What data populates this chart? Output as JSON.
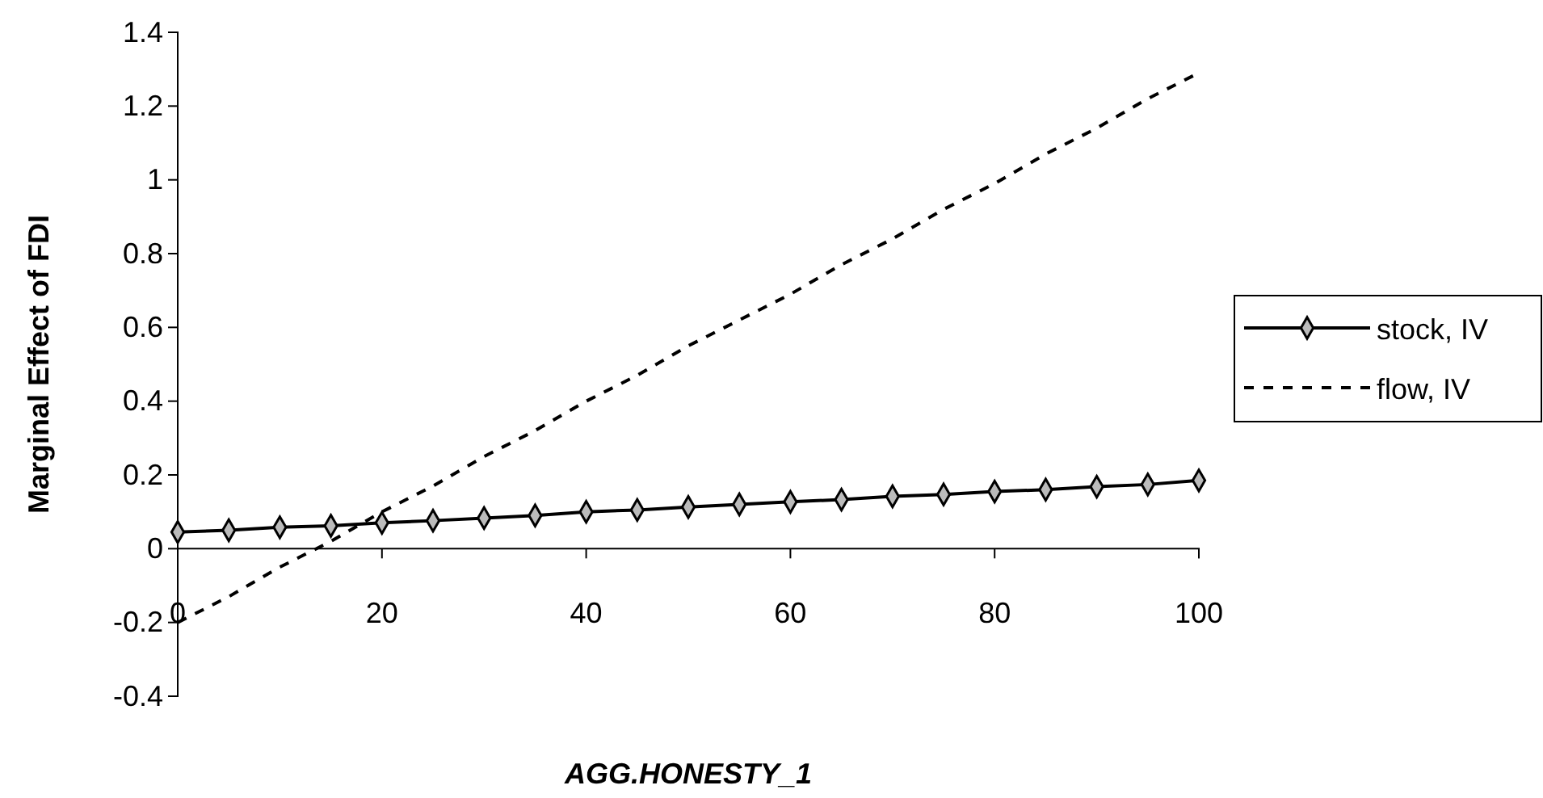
{
  "chart_data": {
    "type": "line",
    "xlabel": "AGG.HONESTY_1",
    "ylabel": "Marginal Effect of FDI",
    "x": [
      0,
      5,
      10,
      15,
      20,
      25,
      30,
      35,
      40,
      45,
      50,
      55,
      60,
      65,
      70,
      75,
      80,
      85,
      90,
      95,
      100
    ],
    "series": [
      {
        "name": "stock, IV",
        "color": "#000000",
        "marker": "diamond",
        "line_style": "solid",
        "values": [
          0.045,
          0.05,
          0.058,
          0.062,
          0.07,
          0.076,
          0.083,
          0.09,
          0.1,
          0.105,
          0.113,
          0.12,
          0.127,
          0.133,
          0.142,
          0.147,
          0.155,
          0.16,
          0.168,
          0.174,
          0.185
        ]
      },
      {
        "name": "flow, IV",
        "color": "#000000",
        "marker": "none",
        "line_style": "dashed",
        "values": [
          -0.2,
          -0.13,
          -0.05,
          0.02,
          0.1,
          0.17,
          0.25,
          0.32,
          0.4,
          0.47,
          0.55,
          0.62,
          0.69,
          0.77,
          0.84,
          0.92,
          0.99,
          1.07,
          1.14,
          1.22,
          1.29
        ]
      }
    ],
    "xlim": [
      0,
      100
    ],
    "xticks": [
      0,
      20,
      40,
      60,
      80,
      100
    ],
    "ylim": [
      -0.4,
      1.4
    ],
    "yticks": [
      -0.4,
      -0.2,
      0,
      0.2,
      0.4,
      0.6,
      0.8,
      1,
      1.2,
      1.4
    ],
    "grid": false,
    "legend": "right"
  }
}
